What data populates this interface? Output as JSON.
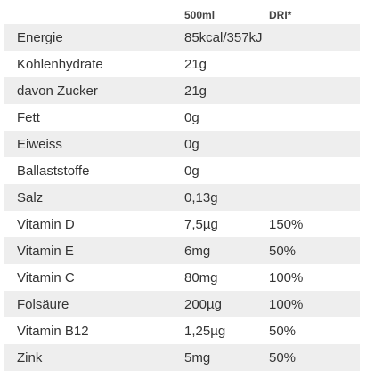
{
  "header": {
    "quantity": "500ml",
    "dri": "DRI*"
  },
  "rows": [
    {
      "name": "Energie",
      "quantity": "85kcal/357kJ",
      "dri": ""
    },
    {
      "name": "Kohlenhydrate",
      "quantity": "21g",
      "dri": ""
    },
    {
      "name": "davon Zucker",
      "quantity": "21g",
      "dri": ""
    },
    {
      "name": "Fett",
      "quantity": "0g",
      "dri": ""
    },
    {
      "name": "Eiweiss",
      "quantity": "0g",
      "dri": ""
    },
    {
      "name": "Ballaststoffe",
      "quantity": "0g",
      "dri": ""
    },
    {
      "name": "Salz",
      "quantity": "0,13g",
      "dri": ""
    },
    {
      "name": "Vitamin D",
      "quantity": "7,5µg",
      "dri": "150%"
    },
    {
      "name": "Vitamin E",
      "quantity": "6mg",
      "dri": "50%"
    },
    {
      "name": "Vitamin C",
      "quantity": "80mg",
      "dri": "100%"
    },
    {
      "name": "Folsäure",
      "quantity": "200µg",
      "dri": "100%"
    },
    {
      "name": "Vitamin B12",
      "quantity": "1,25µg",
      "dri": "50%"
    },
    {
      "name": "Zink",
      "quantity": "5mg",
      "dri": "50%"
    }
  ]
}
